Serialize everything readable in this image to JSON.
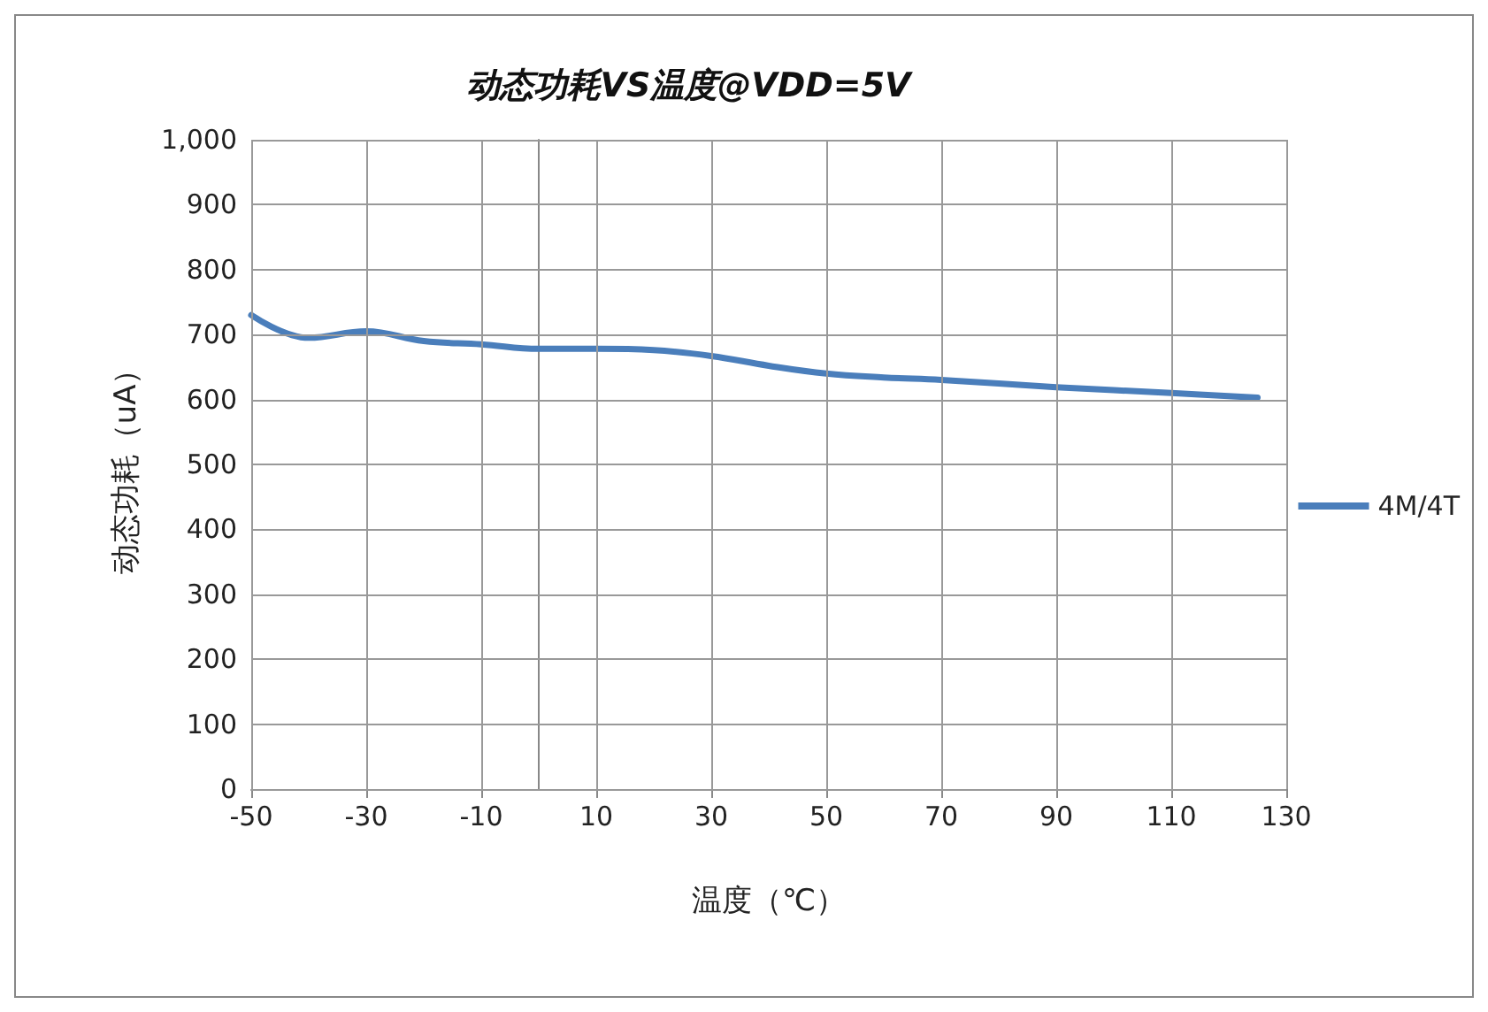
{
  "chart_data": {
    "type": "line",
    "title": "动态功耗VS温度@VDD=5V",
    "xlabel": "温度（℃）",
    "ylabel": "动态功耗（uA）",
    "x": [
      -50,
      -40,
      -30,
      -20,
      -10,
      0,
      10,
      20,
      30,
      40,
      50,
      60,
      70,
      90,
      110,
      125
    ],
    "series": [
      {
        "name": "4M/4T",
        "color": "#4a7ebb",
        "values": [
          730,
          695,
          705,
          690,
          685,
          678,
          678,
          676,
          667,
          652,
          640,
          634,
          630,
          619,
          610,
          603
        ]
      }
    ],
    "xlim": [
      -50,
      130
    ],
    "xticks": [
      -50,
      -30,
      -10,
      10,
      30,
      50,
      70,
      90,
      110,
      130
    ],
    "ylim": [
      0,
      1000
    ],
    "yticks": [
      0,
      100,
      200,
      300,
      400,
      500,
      600,
      700,
      800,
      900,
      {
        "value": 1000,
        "label": "1,000"
      }
    ],
    "grid": true,
    "legend": "right",
    "marker": "none",
    "line_style": "solid"
  }
}
